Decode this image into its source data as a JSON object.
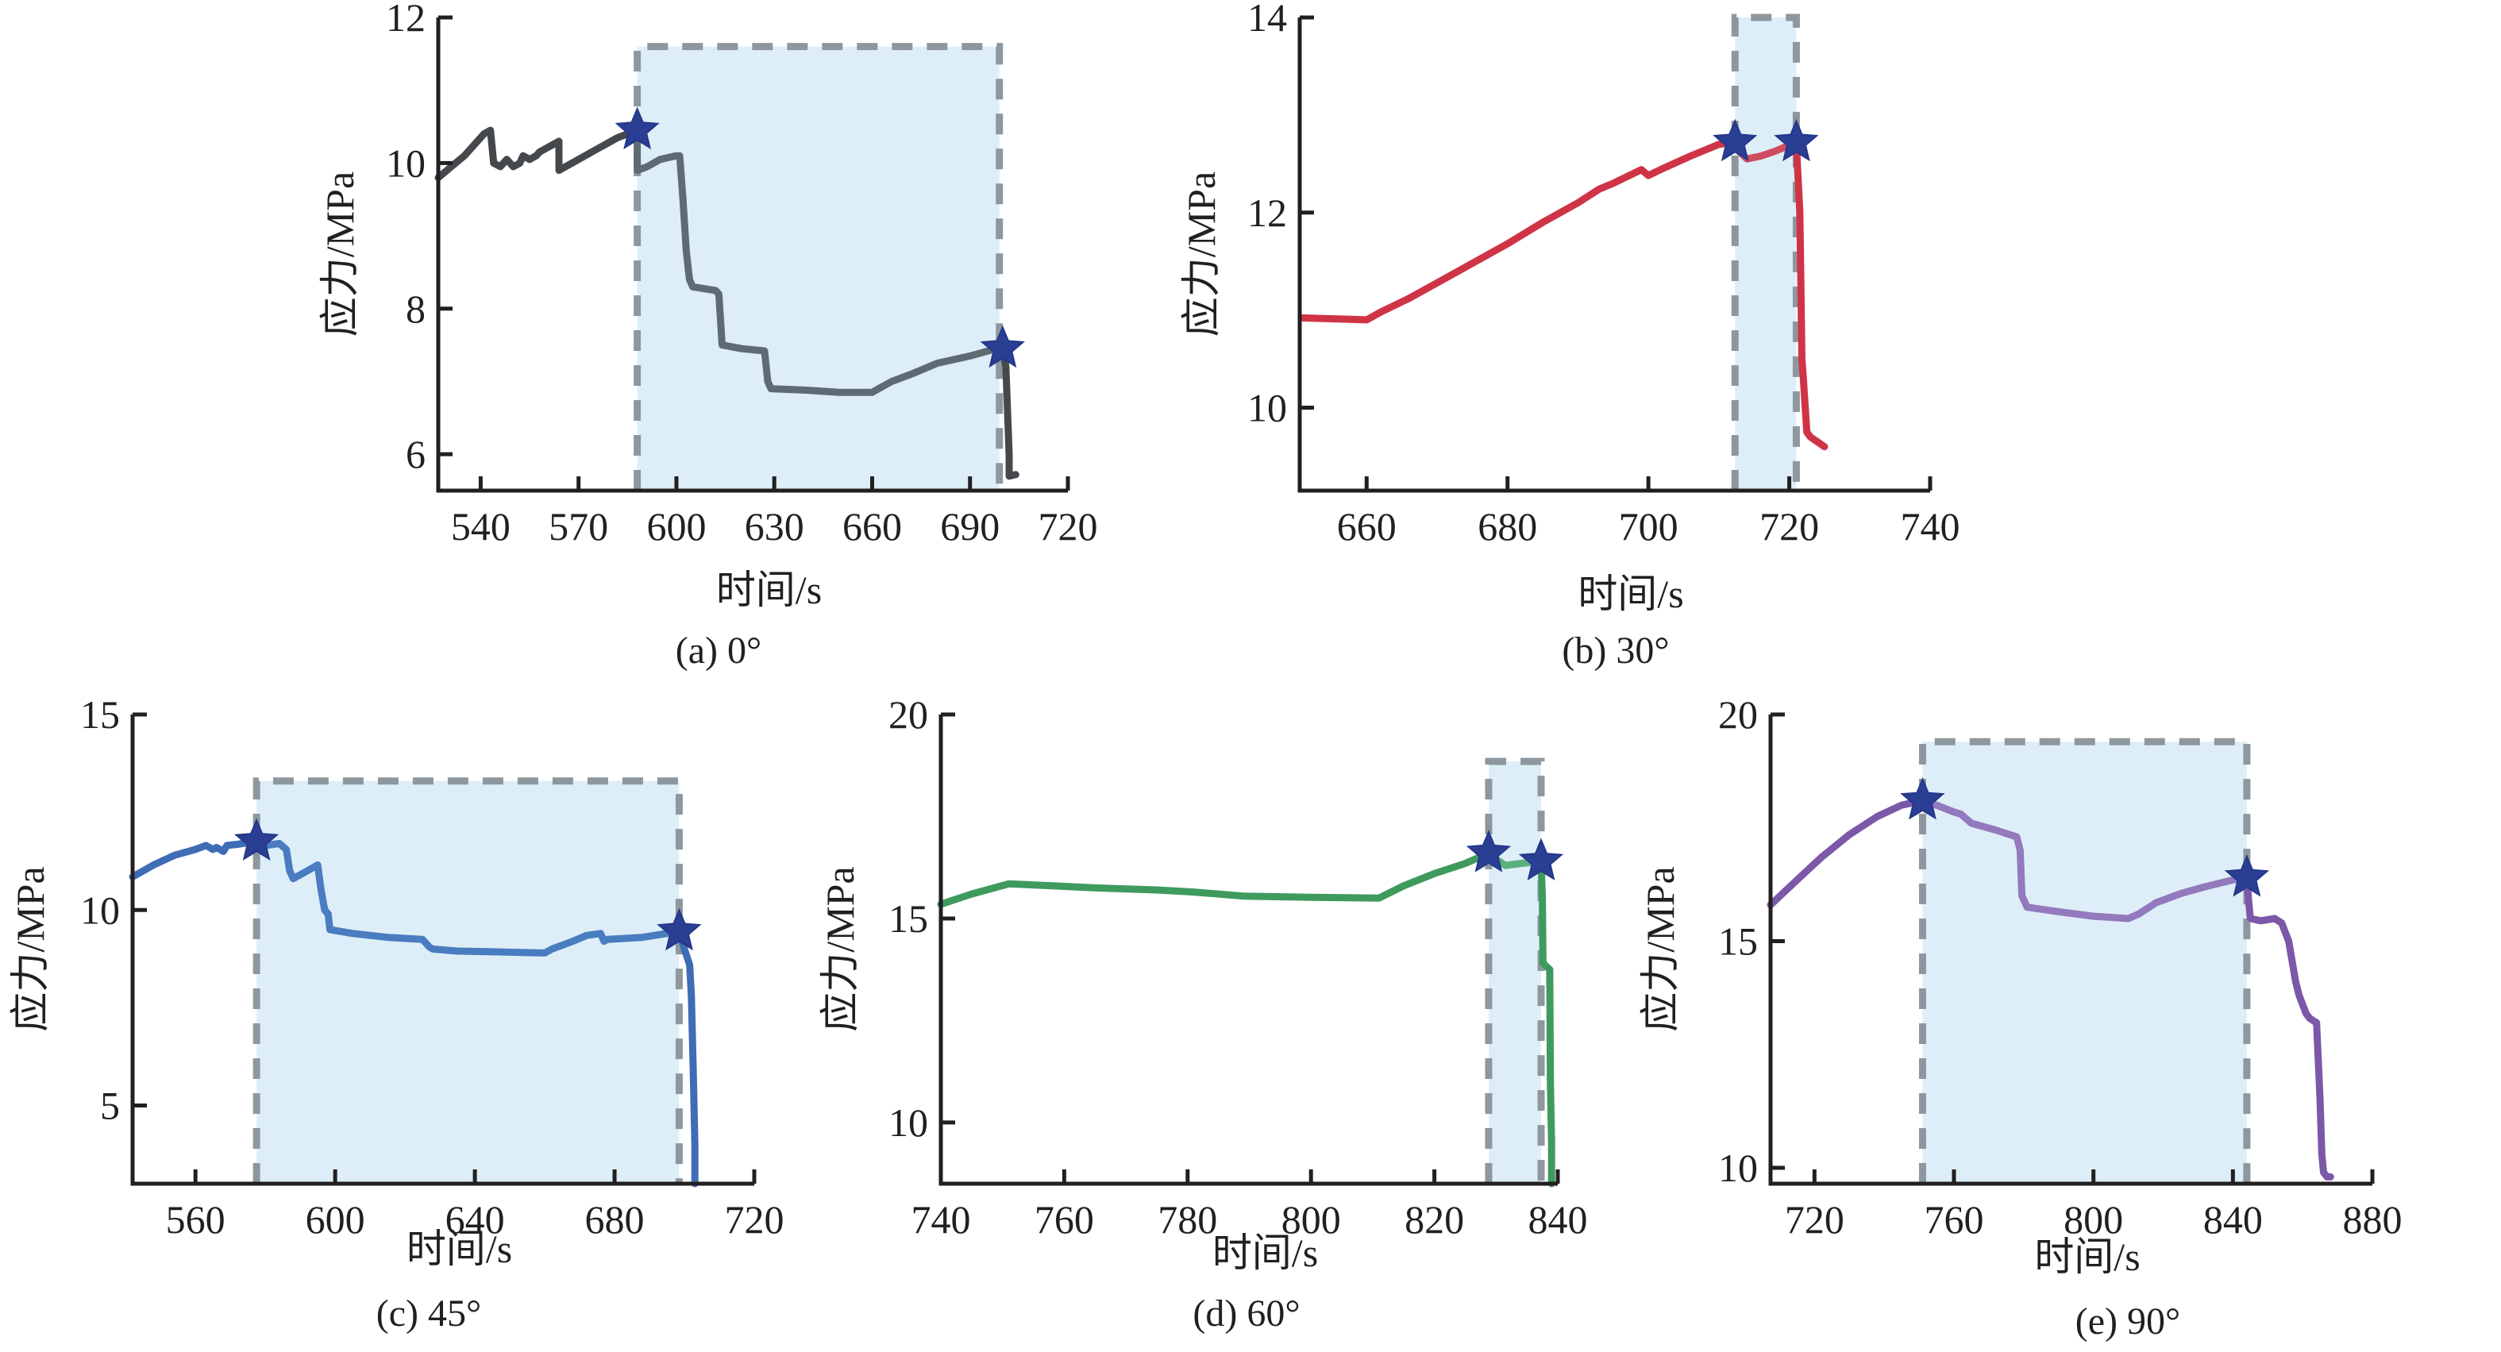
{
  "figure": {
    "panels": [
      "a",
      "b",
      "c",
      "d",
      "e"
    ]
  },
  "chart_data": [
    {
      "id": "a",
      "type": "line",
      "caption": "(a) 0°",
      "title": "",
      "xlabel": "时间/s",
      "ylabel": "应力/MPa",
      "xlim": [
        527,
        720
      ],
      "ylim": [
        5.5,
        12
      ],
      "xticks": [
        540,
        570,
        600,
        630,
        660,
        690,
        720
      ],
      "yticks": [
        6,
        8,
        10,
        12
      ],
      "grid": false,
      "color": "#4a4f55",
      "region_color": "#5e6b74",
      "shaded_region": {
        "x": [
          588,
          699
        ],
        "ytop": 11.6
      },
      "stars": [
        {
          "x": 588,
          "y": 10.45
        },
        {
          "x": 700,
          "y": 7.45
        }
      ],
      "series": [
        {
          "name": "pre",
          "color": "#45484d",
          "x": [
            527,
            535,
            541,
            543,
            544,
            546,
            548,
            550,
            552,
            553,
            555,
            557,
            558,
            560,
            562,
            564,
            564,
            570,
            576,
            582,
            588
          ],
          "y": [
            9.8,
            10.1,
            10.4,
            10.45,
            10.0,
            9.95,
            10.05,
            9.95,
            10.0,
            10.1,
            10.05,
            10.1,
            10.15,
            10.2,
            10.25,
            10.3,
            9.9,
            10.05,
            10.2,
            10.35,
            10.45
          ]
        },
        {
          "name": "window",
          "color": "#5e6b74",
          "x": [
            588,
            588,
            591,
            595,
            600,
            601,
            602,
            603,
            604,
            605,
            612,
            613,
            614,
            620,
            627,
            628,
            629,
            640,
            650,
            660,
            662,
            666,
            672,
            680,
            690,
            698,
            700
          ],
          "y": [
            10.45,
            9.9,
            9.95,
            10.05,
            10.1,
            10.1,
            9.5,
            8.8,
            8.4,
            8.3,
            8.25,
            8.2,
            7.5,
            7.45,
            7.42,
            7.0,
            6.9,
            6.88,
            6.85,
            6.85,
            6.9,
            7.0,
            7.1,
            7.25,
            7.35,
            7.45,
            7.45
          ]
        },
        {
          "name": "post",
          "color": "#45484d",
          "x": [
            700,
            701,
            702,
            702,
            704
          ],
          "y": [
            7.45,
            7.2,
            6.0,
            5.7,
            5.72
          ]
        }
      ]
    },
    {
      "id": "b",
      "type": "line",
      "caption": "(b) 30°",
      "title": "",
      "xlabel": "时间/s",
      "ylabel": "应力/MPa",
      "xlim": [
        650.5,
        740
      ],
      "ylim": [
        9.15,
        14
      ],
      "xticks": [
        660,
        680,
        700,
        720,
        740
      ],
      "yticks": [
        10,
        12,
        14
      ],
      "grid": false,
      "color": "#cf3446",
      "shaded_region": {
        "x": [
          712.3,
          721
        ],
        "ytop": 14.0
      },
      "stars": [
        {
          "x": 712.3,
          "y": 12.72
        },
        {
          "x": 721,
          "y": 12.72
        }
      ],
      "series": [
        {
          "name": "pre",
          "color": "#cf3446",
          "x": [
            651,
            656,
            660,
            662,
            666,
            670,
            675,
            680,
            685,
            690,
            693,
            695,
            699,
            700,
            702,
            706,
            710,
            712.3
          ],
          "y": [
            10.92,
            10.91,
            10.9,
            10.98,
            11.12,
            11.28,
            11.48,
            11.68,
            11.9,
            12.1,
            12.24,
            12.3,
            12.44,
            12.38,
            12.45,
            12.58,
            12.7,
            12.72
          ]
        },
        {
          "name": "window",
          "color": "#cf4c60",
          "x": [
            712.3,
            713,
            714,
            716,
            718,
            721
          ],
          "y": [
            12.72,
            12.62,
            12.55,
            12.58,
            12.63,
            12.72
          ]
        },
        {
          "name": "post",
          "color": "#cf3446",
          "x": [
            721,
            721.5,
            721.8,
            722,
            722.5,
            723,
            724,
            725
          ],
          "y": [
            12.72,
            12.0,
            10.5,
            10.3,
            9.75,
            9.7,
            9.65,
            9.6
          ]
        }
      ]
    },
    {
      "id": "c",
      "type": "line",
      "caption": "(c) 45°",
      "title": "",
      "xlabel": "时间/s",
      "ylabel": "应力/MPa",
      "xlim": [
        542,
        720
      ],
      "ylim": [
        3,
        15
      ],
      "xticks": [
        560,
        600,
        640,
        680,
        720
      ],
      "yticks": [
        5,
        10,
        15
      ],
      "grid": false,
      "color": "#3e6db5",
      "shaded_region": {
        "x": [
          577.5,
          698.5
        ],
        "ytop": 13.3
      },
      "stars": [
        {
          "x": 577.5,
          "y": 11.75
        },
        {
          "x": 698.5,
          "y": 9.45
        }
      ],
      "series": [
        {
          "name": "pre",
          "color": "#3e6db5",
          "x": [
            542,
            548,
            554,
            560,
            563,
            565,
            566,
            568,
            569,
            572,
            575,
            577.5
          ],
          "y": [
            10.85,
            11.15,
            11.4,
            11.55,
            11.65,
            11.55,
            11.6,
            11.5,
            11.65,
            11.68,
            11.72,
            11.75
          ]
        },
        {
          "name": "window",
          "color": "#4a7cc0",
          "x": [
            577.5,
            580,
            584,
            586,
            587,
            588,
            592,
            595,
            596,
            597,
            598,
            598.5,
            605,
            615,
            625,
            627,
            628,
            635,
            645,
            660,
            662,
            668,
            672,
            676,
            677,
            678,
            688,
            698.5
          ],
          "y": [
            11.75,
            11.65,
            11.7,
            11.55,
            11.0,
            10.8,
            11.0,
            11.15,
            10.5,
            10.0,
            9.9,
            9.5,
            9.4,
            9.3,
            9.25,
            9.05,
            9.0,
            8.95,
            8.93,
            8.9,
            9.0,
            9.2,
            9.35,
            9.4,
            9.2,
            9.25,
            9.3,
            9.45
          ]
        },
        {
          "name": "post",
          "color": "#3e6db5",
          "x": [
            698.5,
            700,
            701.5,
            702,
            702.5,
            703,
            703
          ],
          "y": [
            9.45,
            9.0,
            8.6,
            7.8,
            6.0,
            4.0,
            3.0
          ]
        }
      ]
    },
    {
      "id": "d",
      "type": "line",
      "caption": "(d) 60°",
      "title": "",
      "xlabel": "时间/s",
      "ylabel": "应力/MPa",
      "xlim": [
        740,
        840
      ],
      "ylim": [
        8.5,
        20
      ],
      "xticks": [
        740,
        760,
        780,
        800,
        820,
        840
      ],
      "yticks": [
        10,
        15,
        20
      ],
      "grid": false,
      "color": "#3f9a5e",
      "shaded_region": {
        "x": [
          828.8,
          837.3
        ],
        "ytop": 18.85
      },
      "stars": [
        {
          "x": 828.8,
          "y": 16.6
        },
        {
          "x": 837.3,
          "y": 16.4
        }
      ],
      "series": [
        {
          "name": "pre",
          "color": "#3f9a5e",
          "x": [
            740,
            745,
            751,
            758,
            765,
            775,
            781,
            789,
            800,
            811,
            815,
            820,
            825,
            828.8
          ],
          "y": [
            15.35,
            15.6,
            15.85,
            15.8,
            15.75,
            15.7,
            15.65,
            15.55,
            15.52,
            15.5,
            15.8,
            16.1,
            16.35,
            16.6
          ]
        },
        {
          "name": "window",
          "color": "#5bb07a",
          "x": [
            828.8,
            830,
            831.5,
            834,
            837.3
          ],
          "y": [
            16.6,
            16.45,
            16.3,
            16.35,
            16.4
          ]
        },
        {
          "name": "post",
          "color": "#3f9a5e",
          "x": [
            837.3,
            837.5,
            837.6,
            838,
            838.7,
            838.8,
            839,
            839
          ],
          "y": [
            16.4,
            15.5,
            13.9,
            13.85,
            13.75,
            11.0,
            9.5,
            8.5
          ]
        }
      ]
    },
    {
      "id": "e",
      "type": "line",
      "caption": "(e) 90°",
      "title": "",
      "xlabel": "时间/s",
      "ylabel": "应力/MPa",
      "xlim": [
        707.4,
        880
      ],
      "ylim": [
        9.65,
        20
      ],
      "xticks": [
        720,
        760,
        800,
        840,
        880
      ],
      "yticks": [
        10,
        15,
        20
      ],
      "grid": false,
      "color": "#7b58a8",
      "shaded_region": {
        "x": [
          751,
          844
        ],
        "ytop": 19.4,
        "ystep": 19.1,
        "xstep": 755
      },
      "stars": [
        {
          "x": 751,
          "y": 18.1
        },
        {
          "x": 844,
          "y": 16.4
        }
      ],
      "series": [
        {
          "name": "pre",
          "color": "#7b58a8",
          "x": [
            707.4,
            715,
            722,
            730,
            738,
            745,
            751
          ],
          "y": [
            15.8,
            16.35,
            16.85,
            17.35,
            17.75,
            18.0,
            18.1
          ]
        },
        {
          "name": "window",
          "color": "#9379bd",
          "x": [
            751,
            755,
            760,
            762,
            765,
            772,
            778,
            779,
            779.5,
            781,
            790,
            800,
            810,
            813,
            818,
            825,
            832,
            840,
            844
          ],
          "y": [
            18.1,
            18.0,
            17.85,
            17.8,
            17.6,
            17.45,
            17.3,
            17.0,
            16.0,
            15.75,
            15.65,
            15.55,
            15.5,
            15.6,
            15.85,
            16.05,
            16.2,
            16.35,
            16.4
          ]
        },
        {
          "name": "post",
          "color": "#7b58a8",
          "x": [
            844,
            844.5,
            845,
            848,
            852,
            854,
            856,
            858,
            859,
            861,
            862,
            864,
            865,
            865.5,
            866,
            867,
            868
          ],
          "y": [
            16.4,
            15.9,
            15.5,
            15.45,
            15.5,
            15.4,
            15.0,
            14.1,
            13.8,
            13.4,
            13.3,
            13.2,
            11.5,
            10.3,
            9.9,
            9.8,
            9.8
          ]
        }
      ]
    }
  ]
}
